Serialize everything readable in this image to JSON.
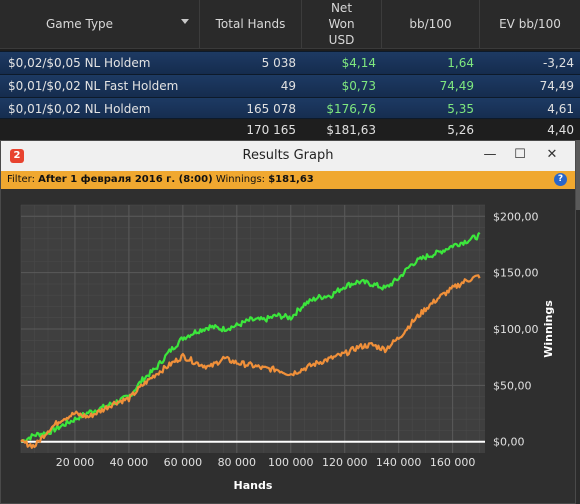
{
  "table": {
    "headers": {
      "game_type": "Game Type",
      "total_hands": "Total Hands",
      "net_won": [
        "Net",
        "Won",
        "USD"
      ],
      "bb100": "bb/100",
      "ev_bb100": "EV bb/100"
    },
    "rows": [
      {
        "game": "$0,02/$0,05 NL Holdem",
        "hands": "5 038",
        "net": "$4,14",
        "bb": "1,64",
        "ev": "-3,24"
      },
      {
        "game": "$0,01/$0,02 NL Fast Holdem",
        "hands": "49",
        "net": "$0,73",
        "bb": "74,49",
        "ev": "74,49"
      },
      {
        "game": "$0,01/$0,02 NL Holdem",
        "hands": "165 078",
        "net": "$176,76",
        "bb": "5,35",
        "ev": "4,61"
      }
    ],
    "total": {
      "hands": "170 165",
      "net": "$181,63",
      "bb": "5,26",
      "ev": "4,40"
    }
  },
  "window": {
    "title": "Results Graph",
    "app_icon": "2",
    "buttons": {
      "minimize": "—",
      "maximize": "☐",
      "close": "✕"
    },
    "filter": {
      "label": "Filter:",
      "value": "After 1 февраля 2016 г. (8:00)",
      "winnings_label": "Winnings:",
      "winnings_value": "$181,63"
    },
    "help": "?"
  },
  "colors": {
    "winnings_line": "#3ce63c",
    "ev_line": "#f0903a",
    "zero_line": "#ffffff",
    "plot_bg": "#3f3f3f",
    "grid": "#5a5a5a"
  },
  "chart_data": {
    "type": "line",
    "xlabel": "Hands",
    "ylabel": "Winnings",
    "xlim": [
      0,
      172000
    ],
    "ylim": [
      -10,
      210
    ],
    "x_ticks": [
      20000,
      40000,
      60000,
      80000,
      100000,
      120000,
      140000,
      160000
    ],
    "x_tick_labels": [
      "20 000",
      "40 000",
      "60 000",
      "80 000",
      "100 000",
      "120 000",
      "140 000",
      "160 000"
    ],
    "y_ticks": [
      0,
      50,
      100,
      150,
      200
    ],
    "y_tick_labels": [
      "$0,00",
      "$50,00",
      "$100,00",
      "$150,00",
      "$200,00"
    ],
    "grid": true,
    "x": [
      0,
      5000,
      10000,
      15000,
      20000,
      25000,
      30000,
      35000,
      40000,
      45000,
      50000,
      55000,
      60000,
      65000,
      70000,
      75000,
      80000,
      85000,
      90000,
      95000,
      100000,
      105000,
      110000,
      115000,
      120000,
      125000,
      130000,
      135000,
      140000,
      145000,
      150000,
      155000,
      160000,
      165000,
      170000
    ],
    "series": [
      {
        "name": "",
        "color": "#3ce63c",
        "values": [
          0,
          6,
          8,
          14,
          20,
          26,
          30,
          35,
          40,
          55,
          65,
          80,
          92,
          98,
          102,
          100,
          103,
          108,
          108,
          112,
          110,
          122,
          128,
          130,
          138,
          142,
          140,
          136,
          145,
          158,
          164,
          168,
          174,
          178,
          183
        ]
      },
      {
        "name": "",
        "color": "#f0903a",
        "values": [
          0,
          -4,
          10,
          20,
          25,
          22,
          28,
          35,
          38,
          50,
          60,
          68,
          76,
          70,
          66,
          74,
          70,
          68,
          65,
          64,
          60,
          65,
          70,
          74,
          78,
          84,
          86,
          82,
          92,
          106,
          118,
          128,
          136,
          143,
          147
        ]
      }
    ]
  }
}
